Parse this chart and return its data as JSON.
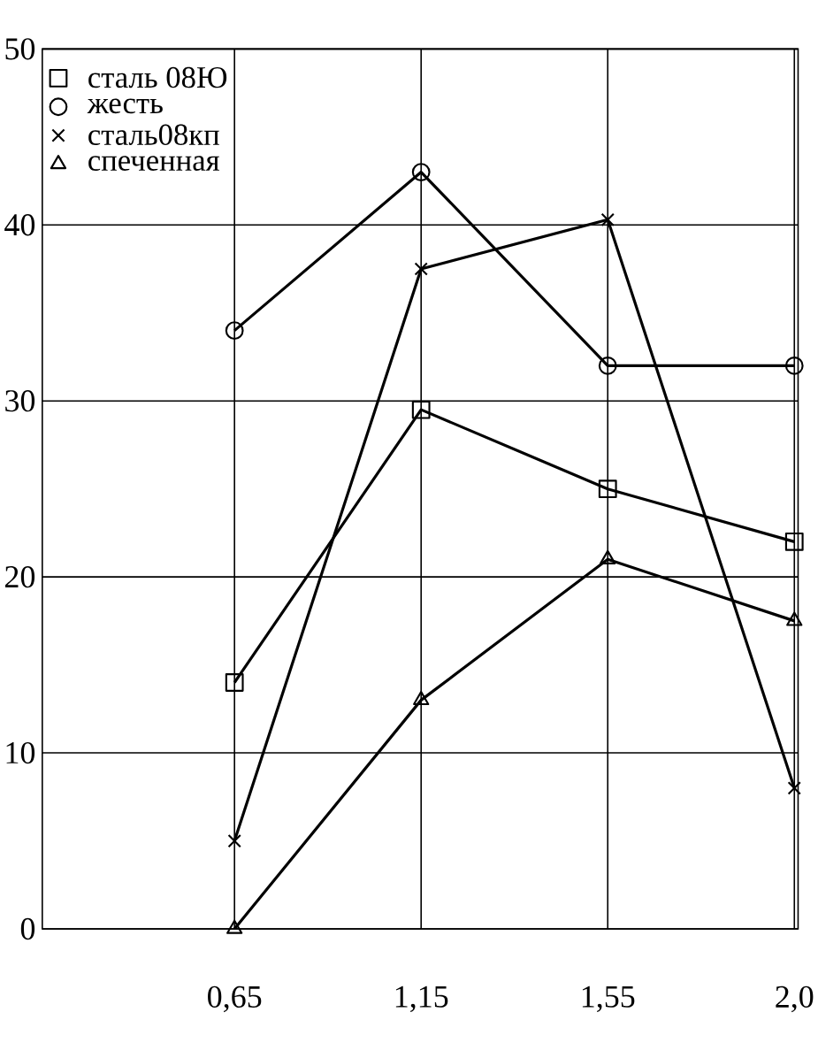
{
  "chart_data": {
    "type": "line",
    "categories": [
      "0,65",
      "1,15",
      "1,55",
      "2,0"
    ],
    "series": [
      {
        "name": "сталь 08Ю",
        "color": "#000000",
        "marker": "square",
        "values": [
          14,
          29.5,
          25,
          22
        ]
      },
      {
        "name": "жесть",
        "color": "#000000",
        "marker": "circle",
        "values": [
          34,
          43,
          32,
          32
        ]
      },
      {
        "name": "сталь08кп",
        "color": "#000000",
        "marker": "cross",
        "values": [
          5,
          37.5,
          40.3,
          8
        ]
      },
      {
        "name": "спеченная",
        "color": "#000000",
        "marker": "triangle",
        "values": [
          0,
          13,
          21,
          17.5
        ]
      }
    ],
    "ylim": [
      0,
      50
    ],
    "yticks": [
      0,
      10,
      20,
      30,
      40,
      50
    ],
    "grid": true,
    "legend": "top left"
  }
}
